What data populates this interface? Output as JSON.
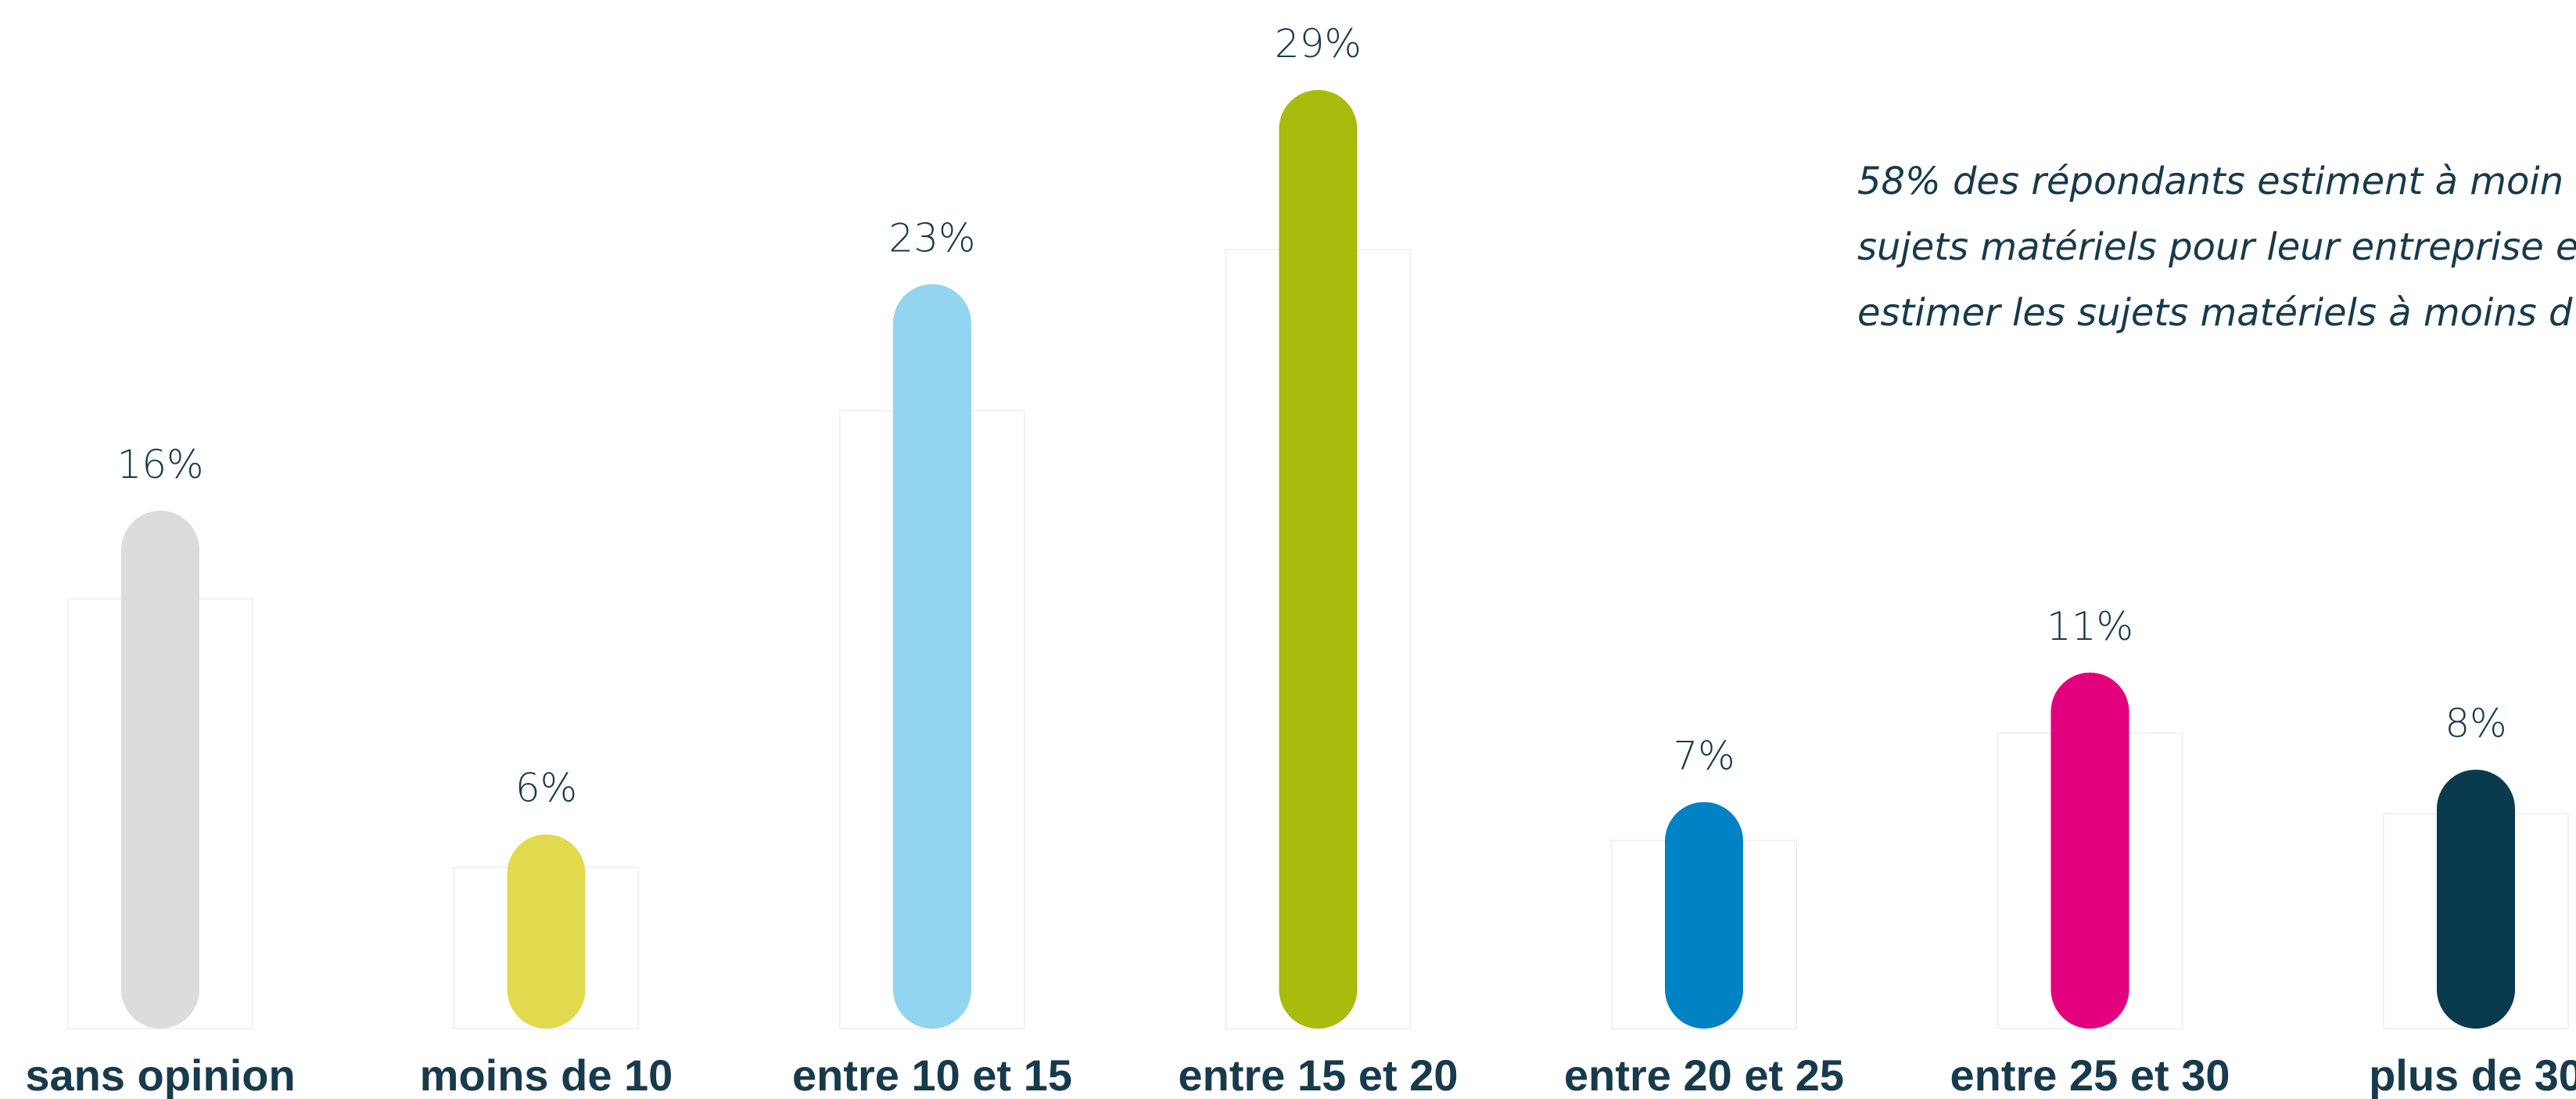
{
  "chart_data": {
    "type": "bar",
    "categories": [
      "sans opinion",
      "moins de 10",
      "entre 10 et 15",
      "entre 15 et 20",
      "entre 20 et 25",
      "entre 25 et 30",
      "plus de 30"
    ],
    "values": [
      16,
      6,
      23,
      29,
      7,
      11,
      8
    ],
    "data_labels": [
      "16%",
      "6%",
      "23%",
      "29%",
      "7%",
      "11%",
      "8%"
    ],
    "colors": [
      "#dcdcdc",
      "#e2da4e",
      "#93d4f1",
      "#a7bc0c",
      "#0082c4",
      "#e3007f",
      "#0a3a4e"
    ],
    "unit": "%",
    "ylim": [
      0,
      29
    ],
    "grid": false,
    "legend": "none"
  },
  "annotation": {
    "lines": [
      "58% des répondants estiment à moin",
      "sujets matériels pour leur entreprise e",
      "estimer les sujets matériels à moins d"
    ]
  }
}
